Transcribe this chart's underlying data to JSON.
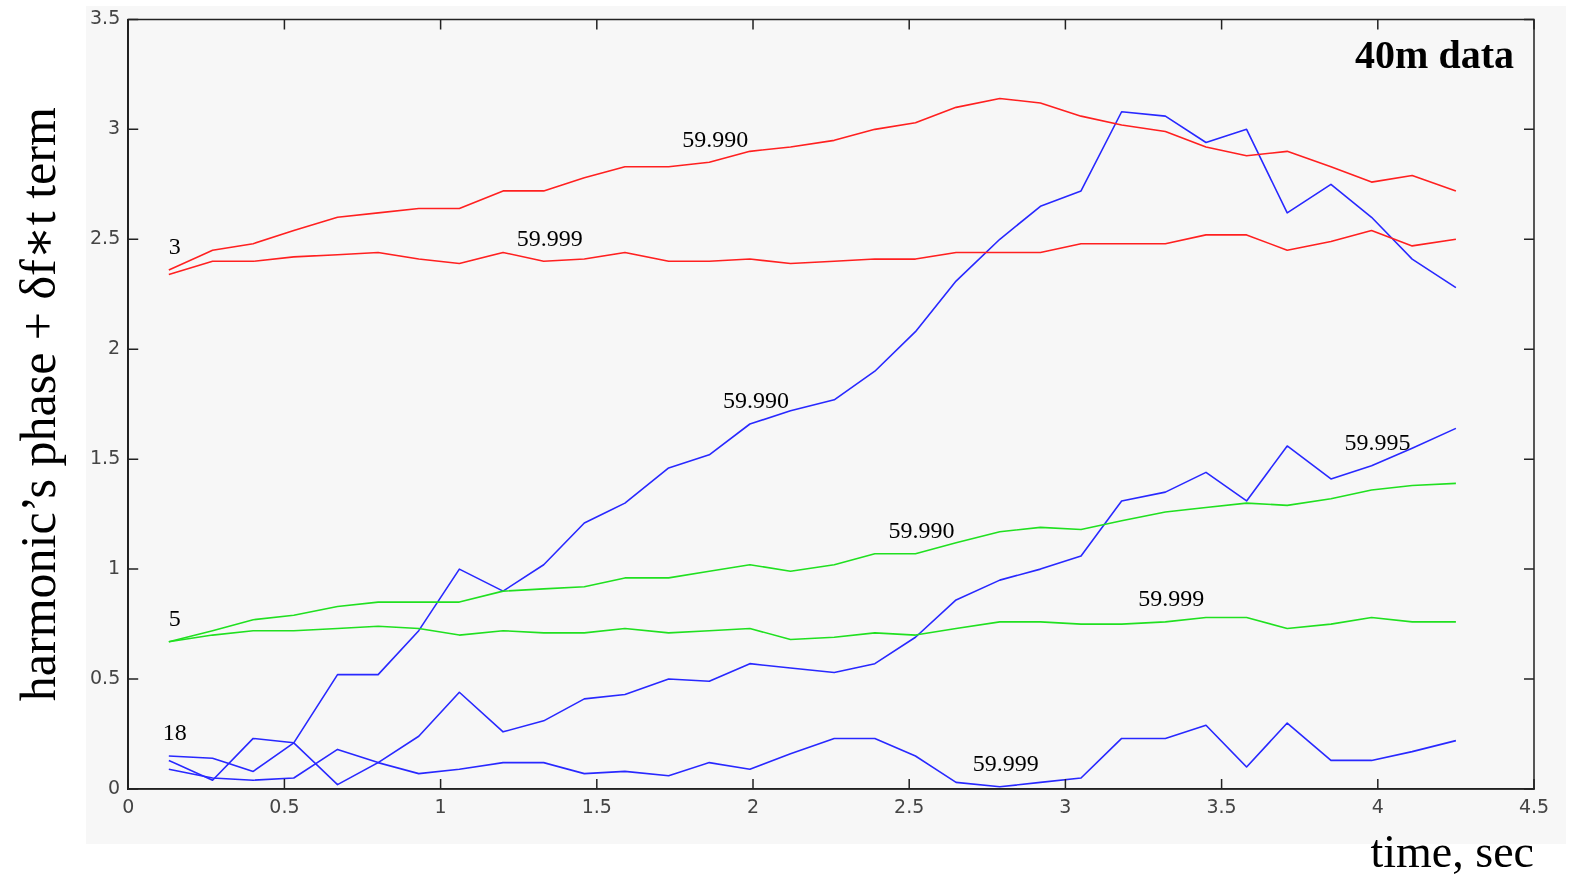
{
  "chart_data": {
    "type": "line",
    "xlabel": "time, sec",
    "ylabel": "harmonic’s phase + δf∗t term",
    "x": [
      0.13,
      0.27,
      0.4,
      0.53,
      0.67,
      0.8,
      0.93,
      1.06,
      1.2,
      1.33,
      1.46,
      1.59,
      1.73,
      1.86,
      1.99,
      2.12,
      2.26,
      2.39,
      2.52,
      2.65,
      2.79,
      2.92,
      3.05,
      3.18,
      3.32,
      3.45,
      3.58,
      3.71,
      3.85,
      3.98,
      4.11,
      4.25
    ],
    "series": [
      {
        "color": "#ff2020",
        "values": [
          2.36,
          2.45,
          2.48,
          2.54,
          2.6,
          2.62,
          2.64,
          2.64,
          2.72,
          2.72,
          2.78,
          2.83,
          2.83,
          2.85,
          2.9,
          2.92,
          2.95,
          3.0,
          3.03,
          3.1,
          3.14,
          3.12,
          3.06,
          3.02,
          2.99,
          2.92,
          2.88,
          2.9,
          2.83,
          2.76,
          2.79,
          2.72
        ]
      },
      {
        "color": "#ff2020",
        "values": [
          2.34,
          2.4,
          2.4,
          2.42,
          2.43,
          2.44,
          2.41,
          2.39,
          2.44,
          2.4,
          2.41,
          2.44,
          2.4,
          2.4,
          2.41,
          2.39,
          2.4,
          2.41,
          2.41,
          2.44,
          2.44,
          2.44,
          2.48,
          2.48,
          2.48,
          2.52,
          2.52,
          2.45,
          2.49,
          2.54,
          2.47,
          2.5
        ]
      },
      {
        "color": "#20e020",
        "values": [
          0.67,
          0.72,
          0.77,
          0.79,
          0.83,
          0.85,
          0.85,
          0.85,
          0.9,
          0.91,
          0.92,
          0.96,
          0.96,
          0.99,
          1.02,
          0.99,
          1.02,
          1.07,
          1.07,
          1.12,
          1.17,
          1.19,
          1.18,
          1.22,
          1.26,
          1.28,
          1.3,
          1.29,
          1.32,
          1.36,
          1.38,
          1.39
        ]
      },
      {
        "color": "#20e020",
        "values": [
          0.67,
          0.7,
          0.72,
          0.72,
          0.73,
          0.74,
          0.73,
          0.7,
          0.72,
          0.71,
          0.71,
          0.73,
          0.71,
          0.72,
          0.73,
          0.68,
          0.69,
          0.71,
          0.7,
          0.73,
          0.76,
          0.76,
          0.75,
          0.75,
          0.76,
          0.78,
          0.78,
          0.73,
          0.75,
          0.78,
          0.76,
          0.76
        ]
      },
      {
        "color": "#2828ff",
        "values": [
          0.13,
          0.04,
          0.23,
          0.21,
          0.52,
          0.52,
          0.72,
          1.0,
          0.9,
          1.02,
          1.21,
          1.3,
          1.46,
          1.52,
          1.66,
          1.72,
          1.77,
          1.9,
          2.08,
          2.31,
          2.5,
          2.65,
          2.72,
          3.08,
          3.06,
          2.94,
          3.0,
          2.62,
          2.75,
          2.6,
          2.41,
          2.28
        ]
      },
      {
        "color": "#2828ff",
        "values": [
          0.15,
          0.14,
          0.08,
          0.21,
          0.02,
          0.12,
          0.24,
          0.44,
          0.26,
          0.31,
          0.41,
          0.43,
          0.5,
          0.49,
          0.57,
          0.55,
          0.53,
          0.57,
          0.69,
          0.86,
          0.95,
          1.0,
          1.06,
          1.31,
          1.35,
          1.44,
          1.31,
          1.56,
          1.41,
          1.47,
          1.55,
          1.64
        ]
      },
      {
        "color": "#2828ff",
        "values": [
          0.09,
          0.05,
          0.04,
          0.05,
          0.18,
          0.12,
          0.07,
          0.09,
          0.12,
          0.12,
          0.07,
          0.08,
          0.06,
          0.12,
          0.09,
          0.16,
          0.23,
          0.23,
          0.15,
          0.03,
          0.01,
          0.03,
          0.05,
          0.23,
          0.23,
          0.29,
          0.1,
          0.3,
          0.13,
          0.13,
          0.17,
          0.22
        ]
      }
    ],
    "xlim": [
      0,
      4.5
    ],
    "xticks": [
      0,
      0.5,
      1,
      1.5,
      2,
      2.5,
      3,
      3.5,
      4,
      4.5
    ],
    "ylim": [
      0,
      3.5
    ],
    "yticks": [
      0,
      0.5,
      1,
      1.5,
      2,
      2.5,
      3,
      3.5
    ],
    "grid": false,
    "legend": false,
    "marker": "none",
    "line_style": "solid",
    "annotations": [
      "40m data",
      {
        "text": "3",
        "x": 0.13,
        "y": 2.36
      },
      {
        "text": "59.990",
        "x": 1.86,
        "y": 2.85
      },
      {
        "text": "59.999",
        "x": 1.33,
        "y": 2.4
      },
      {
        "text": "59.990",
        "x": 1.99,
        "y": 1.66
      },
      {
        "text": "59.995",
        "x": 3.98,
        "y": 1.47
      },
      {
        "text": "59.990",
        "x": 2.52,
        "y": 1.07
      },
      {
        "text": "59.999",
        "x": 3.32,
        "y": 0.76
      },
      {
        "text": "5",
        "x": 0.13,
        "y": 0.67
      },
      {
        "text": "18",
        "x": 0.13,
        "y": 0.15
      },
      {
        "text": "59.999",
        "x": 2.79,
        "y": 0.01
      }
    ]
  }
}
